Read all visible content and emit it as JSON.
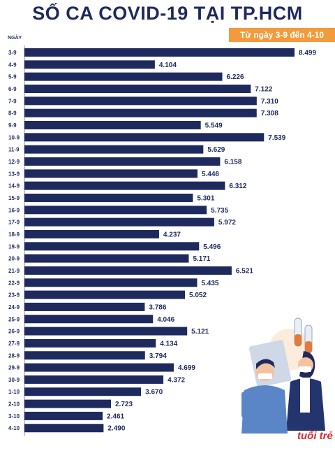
{
  "title": "SỐ CA COVID-19 TẠI TP.HCM",
  "subtitle": "Từ ngày 3-9 đến 4-10",
  "y_axis_label": "NGÀY",
  "logo_text": "tuổi trẻ",
  "colors": {
    "bar": "#1e2a5e",
    "title": "#1e2a5e",
    "badge": "#f39a3c",
    "logo": "#e3262b"
  },
  "chart_data": {
    "type": "bar",
    "orientation": "horizontal",
    "title": "SỐ CA COVID-19 TẠI TP.HCM",
    "subtitle": "Từ ngày 3-9 đến 4-10",
    "ylabel": "NGÀY",
    "xlabel": "",
    "xlim": [
      0,
      8499
    ],
    "grid": false,
    "categories": [
      "3-9",
      "4-9",
      "5-9",
      "6-9",
      "7-9",
      "8-9",
      "9-9",
      "10-9",
      "11-9",
      "12-9",
      "13-9",
      "14-9",
      "15-9",
      "16-9",
      "17-9",
      "18-9",
      "19-9",
      "20-9",
      "21-9",
      "22-9",
      "23-9",
      "24-9",
      "25-9",
      "26-9",
      "27-9",
      "28-9",
      "29-9",
      "30-9",
      "1-10",
      "2-10",
      "3-10",
      "4-10"
    ],
    "values": [
      8499,
      4104,
      6226,
      7122,
      7310,
      7308,
      5549,
      7539,
      5629,
      6158,
      5446,
      6312,
      5301,
      5735,
      5972,
      4237,
      5496,
      5171,
      6521,
      5435,
      5052,
      3786,
      4046,
      5121,
      4134,
      3794,
      4699,
      4372,
      3670,
      2723,
      2461,
      2490
    ],
    "value_labels": [
      "8.499",
      "4.104",
      "6.226",
      "7.122",
      "7.310",
      "7.308",
      "5.549",
      "7.539",
      "5.629",
      "6.158",
      "5.446",
      "6.312",
      "5.301",
      "5.735",
      "5.972",
      "4.237",
      "5.496",
      "5.171",
      "6.521",
      "5.435",
      "5.052",
      "3.786",
      "4.046",
      "5.121",
      "4.134",
      "3.794",
      "4.699",
      "4.372",
      "3.670",
      "2.723",
      "2.461",
      "2.490"
    ]
  }
}
